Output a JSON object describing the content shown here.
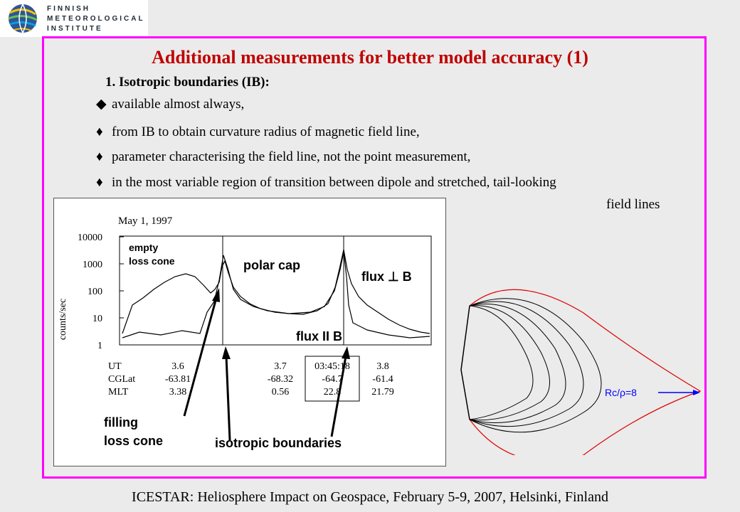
{
  "logo": {
    "line1": "FINNISH",
    "line2": "METEOROLOGICAL",
    "line3": "INSTITUTE"
  },
  "title": "Additional measurements for better model accuracy (1)",
  "subtitle": "1. Isotropic boundaries (IB):",
  "bullets": [
    {
      "glyph": "◆",
      "text": "available almost always,"
    },
    {
      "glyph": "♦",
      "text": "from IB to obtain curvature radius of magnetic field line,"
    },
    {
      "glyph": "♦",
      "text": "parameter characterising the field line, not the point measurement,"
    },
    {
      "glyph": "♦",
      "text": "in the most variable region of transition between dipole and stretched, tail-looking"
    }
  ],
  "bullet_continuation": "field lines",
  "plot": {
    "date": "May 1, 1997",
    "ylabel": "counts/sec",
    "yticks": [
      "10000",
      "1000",
      "100",
      "10",
      "1"
    ],
    "labels": {
      "empty": "empty",
      "loss_cone": "loss cone",
      "polar_cap": "polar cap",
      "flux_perp": "flux ⊥ B",
      "flux_par": "flux II B",
      "filling": "filling",
      "filling_loss_cone": "loss cone",
      "isotropic": "isotropic boundaries"
    },
    "table": {
      "rows": [
        "UT",
        "CGLat",
        "MLT"
      ],
      "columns": [
        [
          "3.6",
          "-63.81",
          "3.38"
        ],
        [
          "3.7",
          "-68.32",
          "0.56"
        ],
        [
          "03:45:18",
          "-64.7",
          "22.8"
        ],
        [
          "3.8",
          "-61.4",
          "21.79"
        ]
      ]
    }
  },
  "field_line_label": "Rc/ρ=8",
  "footer": "ICESTAR: Heliosphere Impact on Geospace, February 5-9, 2007, Helsinki, Finland",
  "colors": {
    "frame": "#ff00ff",
    "title": "#c00000",
    "outer_line": "#e00000",
    "arrow": "#0000ff"
  }
}
